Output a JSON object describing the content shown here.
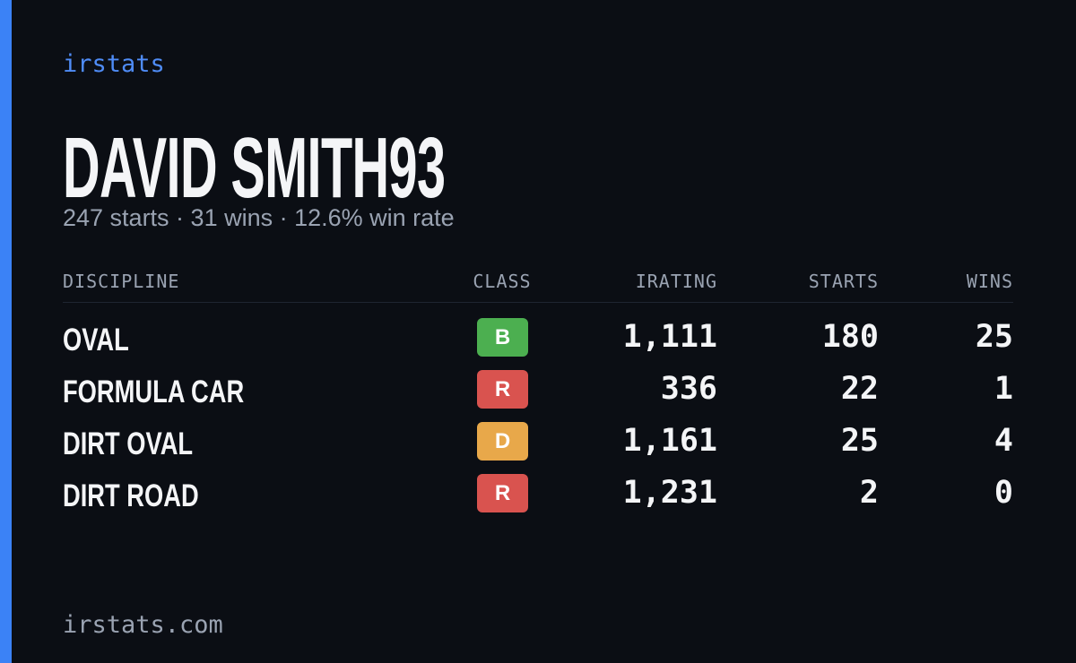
{
  "brand": "irstats",
  "player": {
    "name": "DAVID SMITH93",
    "summary": "247 starts · 31 wins · 12.6% win rate"
  },
  "table": {
    "headers": [
      "DISCIPLINE",
      "CLASS",
      "IRATING",
      "STARTS",
      "WINS"
    ],
    "rows": [
      [
        "OVAL",
        "B",
        "1,111",
        "180",
        "25"
      ],
      [
        "FORMULA CAR",
        "R",
        "336",
        "22",
        "1"
      ],
      [
        "DIRT OVAL",
        "D",
        "1,161",
        "25",
        "4"
      ],
      [
        "DIRT ROAD",
        "R",
        "1,231",
        "2",
        "0"
      ]
    ],
    "class_colors": {
      "B": "#4caf50",
      "R": "#d9534f",
      "D": "#e8a84a"
    }
  },
  "footer": "irstats.com"
}
